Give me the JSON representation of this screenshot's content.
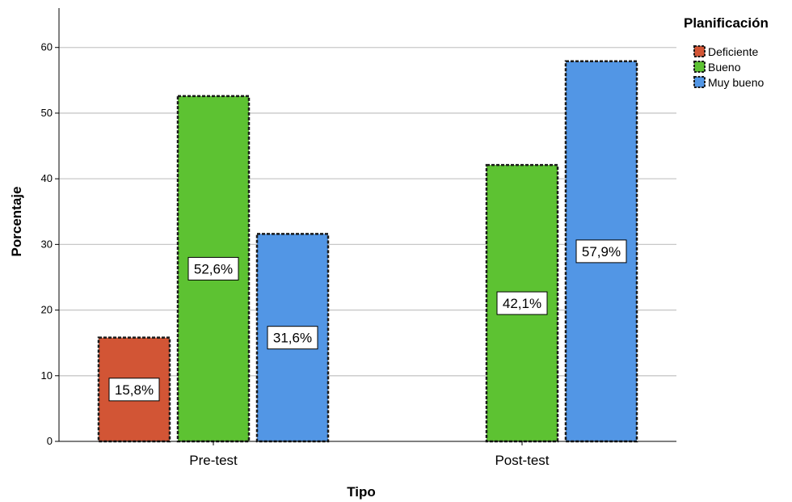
{
  "chart_data": {
    "type": "bar",
    "categories": [
      "Pre-test",
      "Post-test"
    ],
    "series": [
      {
        "name": "Deficiente",
        "values": [
          15.8,
          null
        ],
        "labels": [
          "15,8%",
          null
        ],
        "color": "#d25535"
      },
      {
        "name": "Bueno",
        "values": [
          52.6,
          42.1
        ],
        "labels": [
          "52,6%",
          "42,1%"
        ],
        "color": "#5dc232"
      },
      {
        "name": "Muy bueno",
        "values": [
          31.6,
          57.9
        ],
        "labels": [
          "31,6%",
          "57,9%"
        ],
        "color": "#5296e5"
      }
    ],
    "xlabel": "Tipo",
    "ylabel": "Porcentaje",
    "ylim": [
      0,
      66
    ],
    "yticks": [
      0,
      10,
      20,
      30,
      40,
      50,
      60
    ],
    "grid": true,
    "legend": {
      "title": "Planificación",
      "position": "top-right"
    }
  }
}
